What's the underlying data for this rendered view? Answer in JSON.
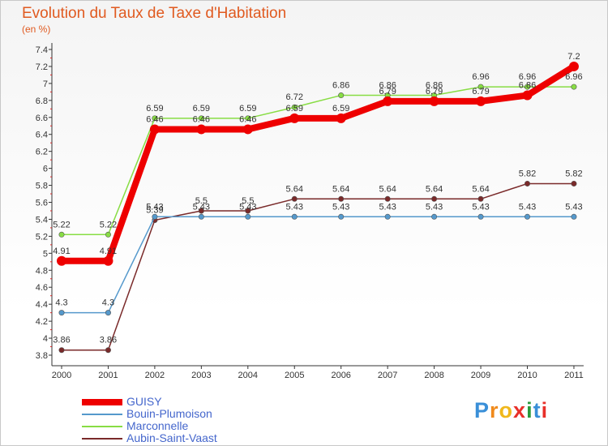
{
  "title": "Evolution du Taux de Taxe d'Habitation",
  "subtitle": "(en %)",
  "logo_text": "Proxiti",
  "chart_data": {
    "type": "line",
    "title": "Evolution du Taux de Taxe d'Habitation",
    "ylabel": "(en %)",
    "xlabel": "",
    "x": [
      "2000",
      "2001",
      "2002",
      "2003",
      "2004",
      "2005",
      "2006",
      "2007",
      "2008",
      "2009",
      "2010",
      "2011"
    ],
    "ylim": [
      3.8,
      7.4
    ],
    "yticks": [
      3.8,
      4,
      4.2,
      4.4,
      4.6,
      4.8,
      5,
      5.2,
      5.4,
      5.6,
      5.8,
      6,
      6.2,
      6.4,
      6.6,
      6.8,
      7,
      7.2,
      7.4
    ],
    "ytick_labels": [
      "3.8",
      "4",
      "4.2",
      "4.4",
      "4.6",
      "4.8",
      "5",
      "5.2",
      "5.4",
      "5.6",
      "5.8",
      "6",
      "6.2",
      "6.4",
      "6.6",
      "6.8",
      "7",
      "7.2",
      "7.4"
    ],
    "grid": false,
    "legend_position": "bottom-left",
    "series": [
      {
        "name": "GUISY",
        "color": "#ee0000",
        "values": [
          4.91,
          4.91,
          6.46,
          6.46,
          6.46,
          6.59,
          6.59,
          6.79,
          6.79,
          6.79,
          6.86,
          7.2
        ],
        "labels": [
          "4.91",
          "4.91",
          "6.46",
          "6.46",
          "6.46",
          "6.59",
          "6.59",
          "6.79",
          "6.79",
          "6.79",
          "6.86",
          "7.2"
        ]
      },
      {
        "name": "Bouin-Plumoison",
        "color": "#5599cc",
        "values": [
          4.3,
          4.3,
          5.43,
          5.43,
          5.43,
          5.43,
          5.43,
          5.43,
          5.43,
          5.43,
          5.43,
          5.43
        ],
        "labels": [
          "4.3",
          "4.3",
          "5.43",
          "5.43",
          "5.43",
          "5.43",
          "5.43",
          "5.43",
          "5.43",
          "5.43",
          "5.43",
          "5.43"
        ]
      },
      {
        "name": "Marconnelle",
        "color": "#88dd44",
        "values": [
          5.22,
          5.22,
          6.59,
          6.59,
          6.59,
          6.72,
          6.86,
          6.86,
          6.86,
          6.96,
          6.96,
          6.96
        ],
        "labels": [
          "5.22",
          "5.22",
          "6.59",
          "6.59",
          "6.59",
          "6.72",
          "6.86",
          "6.86",
          "6.86",
          "6.96",
          "6.96",
          "6.96"
        ]
      },
      {
        "name": "Aubin-Saint-Vaast",
        "color": "#7a2a2a",
        "values": [
          3.86,
          3.86,
          5.39,
          5.5,
          5.5,
          5.64,
          5.64,
          5.64,
          5.64,
          5.64,
          5.82,
          5.82
        ],
        "labels": [
          "3.86",
          "3.86",
          "5.39",
          "5.5",
          "5.5",
          "5.64",
          "5.64",
          "5.64",
          "5.64",
          "5.64",
          "5.82",
          "5.82"
        ]
      }
    ]
  }
}
